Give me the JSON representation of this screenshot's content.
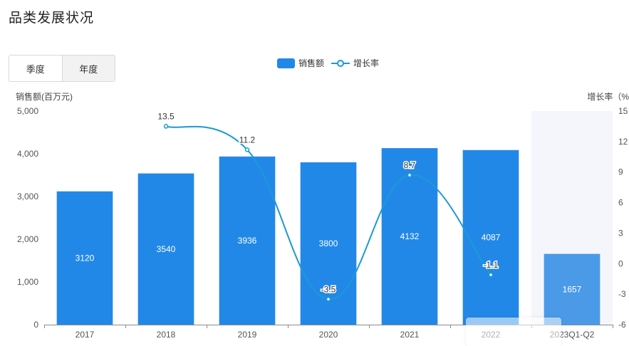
{
  "page": {
    "title": "品类发展状况"
  },
  "toggle": {
    "quarter_label": "季度",
    "year_label": "年度",
    "selected": "year"
  },
  "legend": {
    "bar_label": "销售额",
    "line_label": "增长率"
  },
  "colors": {
    "bar": "#2288e8",
    "bar_forecast": "#4a9ae8",
    "line": "#1a9ad6",
    "forecast_bg": "#f5f6fb",
    "grid": "#e8e8e8"
  },
  "chart_data": {
    "type": "bar",
    "categories": [
      "2017",
      "2018",
      "2019",
      "2020",
      "2021",
      "2022",
      "2023Q1-Q2"
    ],
    "series": [
      {
        "name": "销售额",
        "type": "bar",
        "values": [
          3120,
          3540,
          3936,
          3800,
          4132,
          4087,
          1657
        ],
        "axis": "left"
      },
      {
        "name": "增长率",
        "type": "line",
        "values": [
          null,
          13.5,
          11.2,
          -3.5,
          8.7,
          -1.1,
          null
        ],
        "axis": "right",
        "smooth": true
      }
    ],
    "ylabel": "销售额(百万元)",
    "y2label": "增长率（%",
    "ylim": [
      0,
      5000
    ],
    "yticks": [
      0,
      1000,
      2000,
      3000,
      4000,
      5000
    ],
    "ytick_labels": [
      "0",
      "1,000",
      "2,000",
      "3,000",
      "4,000",
      "5,000"
    ],
    "y2lim": [
      -6,
      15
    ],
    "y2ticks": [
      -6,
      -3,
      0,
      3,
      6,
      9,
      12,
      15
    ],
    "highlighted_category": "2023Q1-Q2",
    "grid": false,
    "legend_position": "top-center"
  }
}
